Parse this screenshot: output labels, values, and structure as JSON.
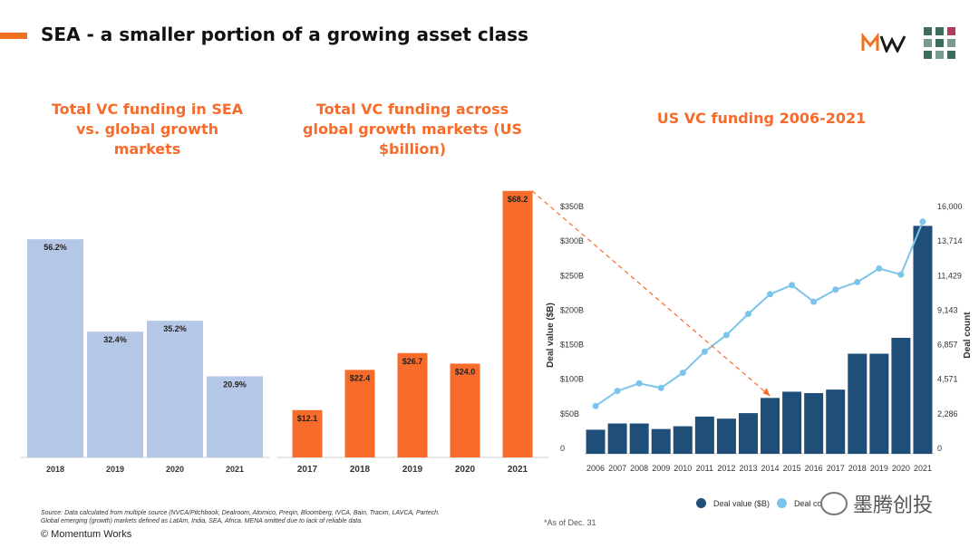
{
  "header": {
    "title": "SEA - a smaller portion of a growing asset class",
    "accent_color": "#F07020",
    "logo_text": "MW"
  },
  "chart_data": [
    {
      "type": "bar",
      "title": "Total VC funding in SEA vs. global growth markets",
      "categories": [
        "2018",
        "2019",
        "2020",
        "2021"
      ],
      "values": [
        56.2,
        32.4,
        35.2,
        20.9
      ],
      "data_labels": [
        "56.2%",
        "32.4%",
        "35.2%",
        "20.9%"
      ],
      "color": "#B4C7E7",
      "ylim": [
        0,
        70
      ]
    },
    {
      "type": "bar",
      "title": "Total VC funding across global growth markets (US $billion)",
      "categories": [
        "2017",
        "2018",
        "2019",
        "2020",
        "2021"
      ],
      "values": [
        12.1,
        22.4,
        26.7,
        24.0,
        68.2
      ],
      "data_labels": [
        "$12.1",
        "$22.4",
        "$26.7",
        "$24.0",
        "$68.2"
      ],
      "color": "#F76B2B",
      "ylim": [
        0,
        70
      ]
    },
    {
      "type": "bar",
      "title": "US VC funding 2006-2021",
      "categories": [
        "2006",
        "2007",
        "2008",
        "2009",
        "2010",
        "2011",
        "2012",
        "2013",
        "2014",
        "2015",
        "2016",
        "2017",
        "2018",
        "2019",
        "2020",
        "2021"
      ],
      "series": [
        {
          "name": "Deal value ($B)",
          "type": "bar",
          "axis": "left",
          "color": "#1F4E79",
          "values": [
            27,
            36,
            36,
            28,
            32,
            46,
            43,
            51,
            73,
            82,
            80,
            85,
            137,
            137,
            160,
            322
          ]
        },
        {
          "name": "Deal count",
          "type": "line",
          "axis": "right",
          "color": "#7CC4EA",
          "values": [
            2800,
            3800,
            4300,
            4000,
            5000,
            6400,
            7500,
            8900,
            10200,
            10800,
            9700,
            10500,
            11000,
            11900,
            11500,
            15000
          ]
        }
      ],
      "ylabel": "Deal value ($B)",
      "y2label": "Deal count",
      "ylim": [
        0,
        350
      ],
      "y_ticks": [
        "0",
        "$50B",
        "$100B",
        "$150B",
        "$200B",
        "$250B",
        "$300B",
        "$350B"
      ],
      "y2lim": [
        0,
        16000
      ],
      "y2_ticks": [
        "0",
        "2,286",
        "4,571",
        "6,857",
        "9,143",
        "11,429",
        "13,714",
        "16,000"
      ],
      "legend": "bottom"
    }
  ],
  "footer": {
    "source_line1": "Source: Data calculated from multiple source (NVCA/Pitchbook, Dealroom, Atomico, Preqin, Bloomberg, IVCA, Bain, Tracxn, LAVCA, Partech.",
    "source_line2": "Global emerging (growth) markets defined as LatAm, India, SEA, Africa. MENA omitted due to lack of reliable data.",
    "copyright": "© Momentum Works",
    "footnote": "*As of Dec. 31",
    "legend_value": "Deal value ($B)",
    "legend_count": "Deal cou",
    "watermark": "墨腾创投"
  }
}
